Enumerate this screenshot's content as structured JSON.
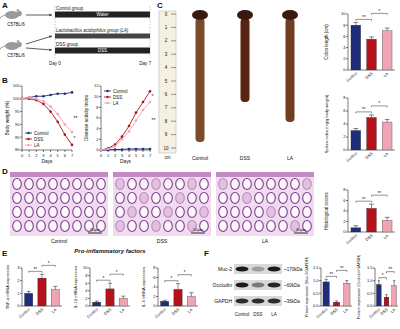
{
  "panel_labels": [
    "A",
    "B",
    "C",
    "D",
    "E",
    "F"
  ],
  "schematic": {
    "strain": "C57BL/6",
    "groups": [
      "Control group",
      "Lactobacillus acidophilus group (LA)",
      "DSS group"
    ],
    "treatments": [
      "Water",
      "DSS"
    ],
    "days": [
      "Day 0",
      "Day 7"
    ]
  },
  "colon_photo": {
    "labels": [
      "Control",
      "DSS",
      "LA"
    ],
    "ruler_ticks": [
      0,
      1,
      2,
      3,
      4,
      5,
      6,
      7,
      8,
      9,
      10
    ],
    "ruler_unit": "cm"
  },
  "histology": {
    "labels": [
      "Control",
      "DSS",
      "LA"
    ],
    "scale_bar": "50μm"
  },
  "western_blot": {
    "lanes": [
      "Control",
      "DSS",
      "LA"
    ],
    "proteins": [
      {
        "name": "Muc-2",
        "size": "~170kDa"
      },
      {
        "name": "Occludin",
        "size": "~60kDa"
      },
      {
        "name": "GAPDH",
        "size": "~36kDa"
      }
    ]
  },
  "panel_e_title": "Pro-inflammatory factors",
  "chart_data": [
    {
      "type": "line",
      "y_label": "Body weight (%)",
      "x_label": "Days",
      "x": [
        0,
        1,
        2,
        3,
        4,
        5,
        6,
        7
      ],
      "xlim": [
        0,
        7
      ],
      "xticks": [
        0,
        1,
        2,
        3,
        4,
        5,
        6,
        7
      ],
      "ylim": [
        80,
        105
      ],
      "yticks": [
        80,
        85,
        90,
        95,
        100,
        105
      ],
      "legend": "lower left",
      "series": [
        {
          "name": "Control",
          "color": "#1f2d7a",
          "marker": "circle",
          "values": [
            100,
            100.5,
            101,
            101,
            101.5,
            102,
            102,
            102.5
          ]
        },
        {
          "name": "DSS",
          "color": "#b5121b",
          "marker": "circle",
          "values": [
            100,
            100,
            99.5,
            98,
            95,
            91,
            86,
            82
          ]
        },
        {
          "name": "LA",
          "color": "#f0a3b3",
          "marker": "circle",
          "values": [
            100,
            100.5,
            100,
            99,
            97,
            94,
            90,
            87
          ]
        }
      ],
      "annotations": [
        {
          "between": [
            0,
            1
          ],
          "text": "**"
        },
        {
          "between": [
            1,
            2
          ],
          "text": "*"
        }
      ]
    },
    {
      "type": "line",
      "y_label": "Disease activity index",
      "x_label": "Days",
      "x": [
        0,
        1,
        2,
        3,
        4,
        5,
        6,
        7
      ],
      "xlim": [
        0,
        7
      ],
      "xticks": [
        0,
        1,
        2,
        3,
        4,
        5,
        6,
        7
      ],
      "ylim": [
        0,
        12
      ],
      "yticks": [
        0,
        2,
        4,
        6,
        8,
        10,
        12
      ],
      "legend": "upper left",
      "series": [
        {
          "name": "Control",
          "color": "#1f2d7a",
          "marker": "circle",
          "values": [
            0,
            0,
            0.1,
            0.1,
            0.2,
            0.2,
            0.2,
            0.2
          ]
        },
        {
          "name": "DSS",
          "color": "#b5121b",
          "marker": "circle",
          "values": [
            0,
            0.3,
            1,
            2.5,
            4.5,
            7,
            9,
            11
          ]
        },
        {
          "name": "LA",
          "color": "#f0a3b3",
          "marker": "circle",
          "values": [
            0,
            0.2,
            0.7,
            2,
            3.5,
            5.5,
            7.5,
            9
          ]
        }
      ],
      "annotations": [
        {
          "between": [
            0,
            1
          ],
          "text": "**"
        },
        {
          "between": [
            1,
            2
          ],
          "text": "*"
        }
      ]
    },
    {
      "type": "bar",
      "y_label": "Colon length (cm)",
      "categories": [
        "Control",
        "DSS",
        "LA"
      ],
      "values": [
        8,
        5.5,
        7
      ],
      "errors": [
        0.5,
        0.4,
        0.5
      ],
      "colors": [
        "#1f2d7a",
        "#b5121b",
        "#f0a3b3"
      ],
      "ylim": [
        0,
        10
      ],
      "yticks": [
        0,
        2,
        4,
        6,
        8,
        10
      ],
      "annotations": [
        {
          "from": 0,
          "to": 1,
          "text": "**"
        },
        {
          "from": 1,
          "to": 2,
          "text": "*"
        }
      ]
    },
    {
      "type": "bar",
      "y_label": "Spleen index (mg/g body weight)",
      "categories": [
        "Control",
        "DSS",
        "LA"
      ],
      "values": [
        3,
        5,
        4.3
      ],
      "errors": [
        0.3,
        0.4,
        0.4
      ],
      "colors": [
        "#1f2d7a",
        "#b5121b",
        "#f0a3b3"
      ],
      "ylim": [
        0,
        8
      ],
      "yticks": [
        0,
        2,
        4,
        6,
        8
      ],
      "annotations": [
        {
          "from": 0,
          "to": 1,
          "text": "**"
        },
        {
          "from": 1,
          "to": 2,
          "text": "*"
        }
      ]
    },
    {
      "type": "bar",
      "y_label": "Histological scores",
      "categories": [
        "Control",
        "DSS",
        "LA"
      ],
      "values": [
        0.8,
        4.5,
        2.2
      ],
      "errors": [
        0.4,
        0.8,
        0.6
      ],
      "colors": [
        "#1f2d7a",
        "#b5121b",
        "#f0a3b3"
      ],
      "ylim": [
        0,
        8
      ],
      "yticks": [
        0,
        2,
        4,
        6,
        8
      ],
      "annotations": [
        {
          "from": 0,
          "to": 1,
          "text": "**"
        },
        {
          "from": 1,
          "to": 2,
          "text": "**"
        }
      ]
    },
    {
      "type": "bar",
      "y_label": "TNF-α mRNA expression",
      "categories": [
        "Control",
        "DSS",
        "LA"
      ],
      "values": [
        1,
        2.2,
        1.3
      ],
      "errors": [
        0.15,
        0.3,
        0.25
      ],
      "colors": [
        "#1f2d7a",
        "#b5121b",
        "#f0a3b3"
      ],
      "ylim": [
        0,
        3
      ],
      "yticks": [
        0,
        1,
        2,
        3
      ],
      "annotations": [
        {
          "from": 0,
          "to": 1,
          "text": "**"
        },
        {
          "from": 1,
          "to": 2,
          "text": "*"
        }
      ]
    },
    {
      "type": "bar",
      "y_label": "IL-1β mRNA expression",
      "categories": [
        "Control",
        "DSS",
        "LA"
      ],
      "values": [
        1,
        4.5,
        2
      ],
      "errors": [
        0.3,
        1.5,
        0.6
      ],
      "colors": [
        "#1f2d7a",
        "#b5121b",
        "#f0a3b3"
      ],
      "ylim": [
        0,
        10
      ],
      "yticks": [
        0,
        2,
        4,
        6,
        8,
        10
      ],
      "annotations": [
        {
          "from": 0,
          "to": 1,
          "text": "*"
        },
        {
          "from": 1,
          "to": 2,
          "text": "*"
        }
      ]
    },
    {
      "type": "bar",
      "y_label": "IL-6 mRNA expression",
      "categories": [
        "Control",
        "DSS",
        "LA"
      ],
      "values": [
        1,
        3.5,
        2
      ],
      "errors": [
        0.2,
        1.2,
        0.8
      ],
      "colors": [
        "#1f2d7a",
        "#b5121b",
        "#f0a3b3"
      ],
      "ylim": [
        0,
        8
      ],
      "yticks": [
        0,
        2,
        4,
        6,
        8
      ],
      "annotations": [
        {
          "from": 0,
          "to": 1,
          "text": "*"
        },
        {
          "from": 1,
          "to": 2,
          "text": "*"
        }
      ]
    },
    {
      "type": "bar",
      "y_label": "Protein expression (Muc-2/GAPDH)",
      "categories": [
        "Control",
        "DSS",
        "LA"
      ],
      "values": [
        0.95,
        0.15,
        0.9
      ],
      "errors": [
        0.1,
        0.05,
        0.1
      ],
      "colors": [
        "#1f2d7a",
        "#b5121b",
        "#f0a3b3"
      ],
      "ylim": [
        0,
        1.5
      ],
      "yticks": [
        {
          "value": 0,
          "label": "0.0"
        },
        {
          "value": 0.5,
          "label": "0.5"
        },
        {
          "value": 1,
          "label": "1.0"
        },
        {
          "value": 1.5,
          "label": "1.5"
        }
      ],
      "annotations": [
        {
          "from": 0,
          "to": 1,
          "text": "**"
        },
        {
          "from": 1,
          "to": 2,
          "text": "**"
        }
      ]
    },
    {
      "type": "bar",
      "y_label": "Protein expression (Occludin/GAPDH)",
      "categories": [
        "Control",
        "DSS",
        "LA"
      ],
      "values": [
        0.85,
        0.35,
        0.8
      ],
      "errors": [
        0.15,
        0.1,
        0.2
      ],
      "colors": [
        "#1f2d7a",
        "#b5121b",
        "#f0a3b3"
      ],
      "ylim": [
        0,
        1.5
      ],
      "yticks": [
        {
          "value": 0,
          "label": "0.0"
        },
        {
          "value": 0.5,
          "label": "0.5"
        },
        {
          "value": 1,
          "label": "1.0"
        },
        {
          "value": 1.5,
          "label": "1.5"
        }
      ],
      "annotations": [
        {
          "from": 0,
          "to": 1,
          "text": "*"
        },
        {
          "from": 1,
          "to": 2,
          "text": "**"
        }
      ]
    }
  ]
}
